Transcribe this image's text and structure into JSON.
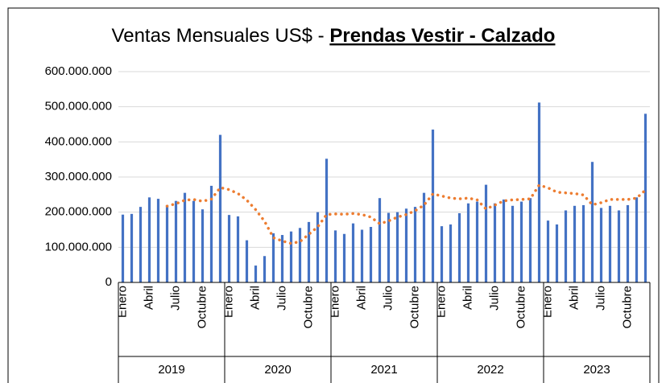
{
  "chart_data": {
    "type": "bar",
    "title": "Ventas Mensuales US$ - ",
    "title_highlight": "Prendas Vestir - Calzado",
    "categories": [
      "Enero",
      null,
      null,
      "Abril",
      null,
      null,
      "Julio",
      null,
      null,
      "Octubre",
      null,
      null,
      "Enero",
      null,
      null,
      "Abril",
      null,
      null,
      "Julio",
      null,
      null,
      "Octubre",
      null,
      null,
      "Enero",
      null,
      null,
      "Abril",
      null,
      null,
      "Julio",
      null,
      null,
      "Octubre",
      null,
      null,
      "Enero",
      null,
      null,
      "Abril",
      null,
      null,
      "Julio",
      null,
      null,
      "Octubre",
      null,
      null,
      "Enero",
      null,
      null,
      "Abril",
      null,
      null,
      "Julio",
      null,
      null,
      "Octubre",
      null,
      null
    ],
    "groups": [
      "2019",
      "2020",
      "2021",
      "2022",
      "2023"
    ],
    "series": [
      {
        "color": "#4472c4",
        "values": [
          193000000,
          195000000,
          215000000,
          242000000,
          238000000,
          220000000,
          232000000,
          255000000,
          232000000,
          208000000,
          275000000,
          420000000,
          192000000,
          188000000,
          120000000,
          48000000,
          75000000,
          140000000,
          135000000,
          145000000,
          155000000,
          172000000,
          200000000,
          352000000,
          148000000,
          138000000,
          168000000,
          150000000,
          158000000,
          240000000,
          198000000,
          200000000,
          210000000,
          215000000,
          255000000,
          435000000,
          160000000,
          165000000,
          197000000,
          225000000,
          230000000,
          278000000,
          225000000,
          236000000,
          218000000,
          230000000,
          240000000,
          512000000,
          176000000,
          165000000,
          205000000,
          218000000,
          220000000,
          343000000,
          212000000,
          218000000,
          205000000,
          220000000,
          242000000,
          480000000
        ]
      }
    ],
    "trendline": {
      "color": "#ed7d31",
      "style": "dotted",
      "values": [
        null,
        null,
        null,
        null,
        null,
        217000000,
        224000000,
        234000000,
        236000000,
        231000000,
        237000000,
        270000000,
        264000000,
        253000000,
        234000000,
        207000000,
        174000000,
        127000000,
        118000000,
        111000000,
        116000000,
        137000000,
        158000000,
        193000000,
        195000000,
        194000000,
        196000000,
        193000000,
        186000000,
        167000000,
        175000000,
        186000000,
        193000000,
        204000000,
        220000000,
        252000000,
        246000000,
        240000000,
        238000000,
        240000000,
        235000000,
        209000000,
        220000000,
        232000000,
        235000000,
        236000000,
        238000000,
        277000000,
        269000000,
        257000000,
        255000000,
        253000000,
        249000000,
        221000000,
        227000000,
        236000000,
        236000000,
        236000000,
        240000000,
        263000000
      ]
    },
    "ylim": [
      0,
      600000000
    ],
    "yticks": [
      0,
      {
        "value": 100000000,
        "label": "100.000.000"
      },
      {
        "value": 200000000,
        "label": "200.000.000"
      },
      {
        "value": 300000000,
        "label": "300.000.000"
      },
      {
        "value": 400000000,
        "label": "400.000.000"
      },
      {
        "value": 500000000,
        "label": "500.000.000"
      },
      {
        "value": 600000000,
        "label": "600.000.000"
      }
    ],
    "grid": true
  }
}
